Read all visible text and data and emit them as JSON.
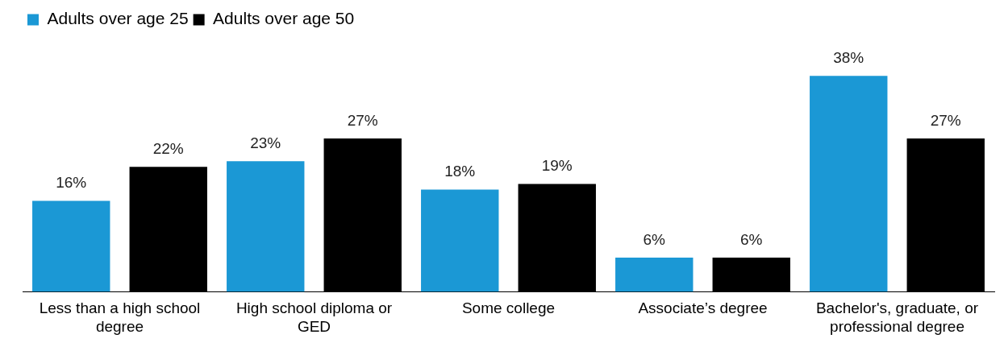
{
  "chart_data": {
    "type": "bar",
    "categories": [
      "Less than a high school degree",
      "High school diploma or GED",
      "Some college",
      "Associate’s degree",
      "Bachelor's, graduate, or professional degree"
    ],
    "series": [
      {
        "name": "Adults over age 25",
        "color": "#1b98d5",
        "values": [
          16,
          23,
          18,
          6,
          38
        ],
        "value_labels": [
          "16%",
          "23%",
          "18%",
          "6%",
          "38%"
        ]
      },
      {
        "name": "Adults over age 50",
        "color": "#000000",
        "values": [
          22,
          27,
          19,
          6,
          27
        ],
        "value_labels": [
          "22%",
          "27%",
          "19%",
          "6%",
          "27%"
        ]
      }
    ],
    "legend": "top left",
    "grid": false
  }
}
